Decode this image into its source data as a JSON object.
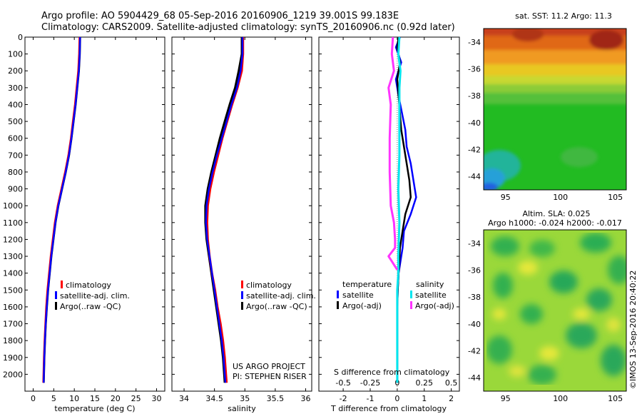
{
  "header": {
    "line1": "Argo profile: AO 5904429_68 05-Sep-2016 20160906_1219 39.001S 99.183E",
    "line2": "Climatology: CARS2009. Satellite-adjusted climatology: synTS_20160906.nc (0.92d later)"
  },
  "colors": {
    "climatology": "#ff0000",
    "satellite": "#0000ff",
    "argo": "#000000",
    "sal_satellite": "#00e5ee",
    "sal_argo": "#ff33ff"
  },
  "watermark": "©IMOS 13-Sep-2016 20:40:22",
  "chart_data": [
    {
      "id": "temperature",
      "type": "line",
      "xlabel": "temperature (deg C)",
      "ylabel": "",
      "xlim": [
        -2,
        32
      ],
      "ylim": [
        2100,
        0
      ],
      "xticks": [
        0,
        5,
        10,
        15,
        20,
        25,
        30
      ],
      "yticks": [
        0,
        100,
        200,
        300,
        400,
        500,
        600,
        700,
        800,
        900,
        1000,
        1100,
        1200,
        1300,
        1400,
        1500,
        1600,
        1700,
        1800,
        1900,
        2000
      ],
      "legend": [
        "climatology",
        "satellite-adj. clim.",
        "Argo(..raw -QC)"
      ],
      "series": [
        {
          "name": "climatology",
          "x": [
            11.3,
            11.2,
            11.0,
            10.6,
            10.2,
            9.7,
            9.2,
            8.6,
            7.8,
            6.9,
            6.0,
            5.3,
            4.8,
            4.3,
            3.9,
            3.5,
            3.2,
            3.0,
            2.8,
            2.65,
            2.55,
            2.5
          ],
          "y": [
            0,
            100,
            200,
            300,
            400,
            500,
            600,
            700,
            800,
            900,
            1000,
            1100,
            1200,
            1300,
            1400,
            1500,
            1600,
            1700,
            1800,
            1900,
            2000,
            2050
          ]
        },
        {
          "name": "satellite-adj. clim.",
          "x": [
            11.4,
            11.3,
            11.1,
            10.7,
            10.3,
            9.8,
            9.3,
            8.7,
            7.9,
            7.0,
            6.1,
            5.4,
            4.9,
            4.4,
            4.0,
            3.6,
            3.3,
            3.05,
            2.85,
            2.7,
            2.6,
            2.55
          ],
          "y": [
            0,
            100,
            200,
            300,
            400,
            500,
            600,
            700,
            800,
            900,
            1000,
            1100,
            1200,
            1300,
            1400,
            1500,
            1600,
            1700,
            1800,
            1900,
            2000,
            2050
          ]
        },
        {
          "name": "Argo(..raw -QC)",
          "x": [
            11.4,
            11.3,
            11.1,
            10.7,
            10.3,
            9.8,
            9.3,
            8.7,
            7.9,
            7.0,
            6.1,
            5.4,
            4.9,
            4.4,
            4.0,
            3.6,
            3.3,
            3.05,
            2.85,
            2.7,
            2.6,
            2.55
          ],
          "y": [
            0,
            100,
            200,
            300,
            400,
            500,
            600,
            700,
            800,
            900,
            1000,
            1100,
            1200,
            1300,
            1400,
            1500,
            1600,
            1700,
            1800,
            1900,
            2000,
            2050
          ]
        }
      ]
    },
    {
      "id": "salinity",
      "type": "line",
      "xlabel": "salinity",
      "xlim": [
        33.8,
        36.1
      ],
      "ylim": [
        2100,
        0
      ],
      "xticks": [
        34,
        34.5,
        35,
        35.5,
        36
      ],
      "legend": [
        "climatology",
        "satellite-adj. clim.",
        "Argo(..raw -QC)"
      ],
      "annotation": [
        "US ARGO PROJECT",
        "PI: STEPHEN RISER"
      ],
      "series": [
        {
          "name": "climatology",
          "x": [
            34.97,
            34.97,
            34.95,
            34.88,
            34.79,
            34.71,
            34.63,
            34.56,
            34.49,
            34.43,
            34.39,
            34.38,
            34.39,
            34.42,
            34.46,
            34.51,
            34.55,
            34.6,
            34.64,
            34.67,
            34.69,
            34.7
          ],
          "y": [
            0,
            100,
            200,
            300,
            400,
            500,
            600,
            700,
            800,
            900,
            1000,
            1100,
            1200,
            1300,
            1400,
            1500,
            1600,
            1700,
            1800,
            1900,
            2000,
            2050
          ]
        },
        {
          "name": "satellite-adj. clim.",
          "x": [
            34.96,
            34.96,
            34.93,
            34.87,
            34.78,
            34.7,
            34.62,
            34.54,
            34.47,
            34.41,
            34.37,
            34.36,
            34.38,
            34.42,
            34.46,
            34.5,
            34.54,
            34.58,
            34.62,
            34.65,
            34.67,
            34.68
          ],
          "y": [
            0,
            100,
            200,
            300,
            400,
            500,
            600,
            700,
            800,
            900,
            1000,
            1100,
            1200,
            1300,
            1400,
            1500,
            1600,
            1700,
            1800,
            1900,
            2000,
            2050
          ]
        },
        {
          "name": "Argo(..raw -QC)",
          "x": [
            34.95,
            34.95,
            34.9,
            34.84,
            34.75,
            34.67,
            34.59,
            34.52,
            34.45,
            34.39,
            34.35,
            34.35,
            34.37,
            34.41,
            34.45,
            34.49,
            34.53,
            34.57,
            34.61,
            34.64,
            34.66,
            34.67
          ],
          "y": [
            0,
            100,
            200,
            300,
            400,
            500,
            600,
            700,
            800,
            900,
            1000,
            1100,
            1200,
            1300,
            1400,
            1500,
            1600,
            1700,
            1800,
            1900,
            2000,
            2050
          ]
        }
      ]
    },
    {
      "id": "difference",
      "type": "line",
      "xlabel": "T difference from climatology",
      "top_label": "S difference from climatology",
      "xlim": [
        -2.9,
        2.3
      ],
      "ylim": [
        2100,
        0
      ],
      "xticks": [
        -2,
        -1,
        0,
        1,
        2
      ],
      "xticklabels": [
        "-2",
        "-1",
        "0",
        "1",
        "2"
      ],
      "top_ticks": [
        -0.5,
        -0.25,
        0,
        0.25,
        0.5
      ],
      "top_ticklabels": [
        "-0.5",
        "-0.25",
        "0",
        "0.25",
        "0.5"
      ],
      "legend_titles": [
        "temperature",
        "salinity"
      ],
      "legend": [
        "satellite",
        "Argo(-adj)",
        "satellite",
        "Argo(-adj)"
      ],
      "series": [
        {
          "name": "T satellite",
          "x": [
            0.1,
            -0.05,
            0.15,
            -0.05,
            0.05,
            0.3,
            0.35,
            0.5,
            0.6,
            0.7,
            0.5,
            0.25,
            0.2,
            0.05,
            0.02,
            0.0,
            0.0,
            0.0,
            0.0,
            0.0,
            0.0
          ],
          "y": [
            0,
            60,
            150,
            250,
            350,
            550,
            650,
            750,
            850,
            950,
            1050,
            1150,
            1250,
            1400,
            1500,
            1600,
            1700,
            1800,
            1900,
            2000,
            2050
          ]
        },
        {
          "name": "T Argo(-adj)",
          "x": [
            0.05,
            0.0,
            0.1,
            0.0,
            0.05,
            0.15,
            0.25,
            0.35,
            0.45,
            0.5,
            0.3,
            0.2,
            0.1,
            0.05,
            0.02,
            0.0,
            0.0,
            0.0,
            0.0,
            0.0,
            0.0
          ],
          "y": [
            0,
            60,
            150,
            250,
            350,
            550,
            650,
            750,
            850,
            950,
            1050,
            1150,
            1250,
            1400,
            1500,
            1600,
            1700,
            1800,
            1900,
            2000,
            2050
          ]
        },
        {
          "name": "S satellite",
          "x": [
            0.02,
            0.01,
            0.03,
            0.02,
            0.02,
            0.02,
            0.01,
            0.02,
            0.01,
            0.01,
            0.0,
            0.0,
            0.0,
            0.0,
            0.0,
            0.0,
            0.0,
            0.0,
            0.0,
            0.0
          ],
          "y": [
            0,
            100,
            200,
            300,
            500,
            700,
            900,
            1100,
            1300,
            1400,
            1500,
            1600,
            1700,
            1800,
            1900,
            1950,
            2000,
            2020,
            2040,
            2050
          ]
        },
        {
          "name": "S Argo(-adj)",
          "x": [
            -0.04,
            -0.05,
            -0.03,
            -0.08,
            -0.06,
            -0.07,
            -0.07,
            -0.06,
            -0.03,
            -0.02,
            -0.02,
            -0.08,
            -0.05,
            -0.02,
            0.0
          ],
          "y": [
            0,
            100,
            200,
            300,
            400,
            600,
            800,
            1000,
            1100,
            1200,
            1250,
            1300,
            1330,
            1360,
            1380
          ]
        }
      ]
    },
    {
      "id": "sst_map",
      "type": "heatmap",
      "title": "sat. SST: 11.2  Argo: 11.3",
      "xticks": [
        95,
        100,
        105
      ],
      "yticks": [
        -34,
        -36,
        -38,
        -40,
        -42,
        -44
      ],
      "xlim": [
        93,
        106
      ],
      "ylim": [
        -45,
        -33
      ]
    },
    {
      "id": "sla_map",
      "type": "heatmap",
      "title": "Altim. SLA: 0.025",
      "subtitle": "Argo h1000: -0.024  h2000: -0.017",
      "xticks": [
        95,
        100,
        105
      ],
      "yticks": [
        -34,
        -36,
        -38,
        -40,
        -42,
        -44
      ],
      "xlim": [
        93,
        106
      ],
      "ylim": [
        -45,
        -33
      ]
    }
  ]
}
